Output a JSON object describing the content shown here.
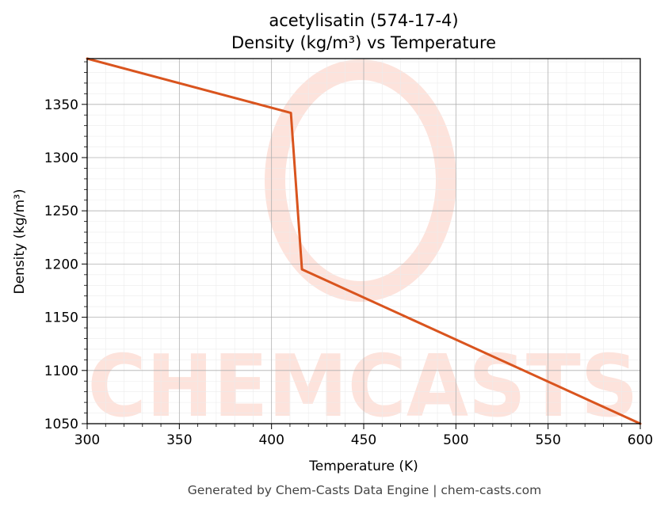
{
  "chart_data": {
    "type": "line",
    "title_line1": "acetylisatin (574-17-4)",
    "title_line2": "Density (kg/m³) vs Temperature",
    "xlabel": "Temperature (K)",
    "ylabel": "Density (kg/m³)",
    "xlim": [
      300,
      600
    ],
    "ylim": [
      1050,
      1393
    ],
    "x_ticks": [
      300,
      350,
      400,
      450,
      500,
      550,
      600
    ],
    "y_ticks": [
      1050,
      1100,
      1150,
      1200,
      1250,
      1300,
      1350
    ],
    "grid": true,
    "minor_grid": true,
    "series": [
      {
        "color": "#d9541e",
        "points": [
          {
            "x": 300,
            "y": 1393
          },
          {
            "x": 410.5,
            "y": 1342
          },
          {
            "x": 416.5,
            "y": 1195
          },
          {
            "x": 600,
            "y": 1050
          }
        ]
      }
    ]
  },
  "watermark": {
    "text": "CHEMCASTS",
    "color": "#fde3dc"
  },
  "footer": {
    "text": "Generated by Chem-Casts Data Engine | chem-casts.com"
  }
}
